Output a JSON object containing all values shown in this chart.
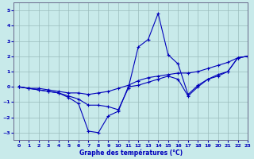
{
  "xlabel": "Graphe des températures (°C)",
  "xlim": [
    -0.5,
    23
  ],
  "ylim": [
    -3.5,
    5.5
  ],
  "yticks": [
    -3,
    -2,
    -1,
    0,
    1,
    2,
    3,
    4,
    5
  ],
  "xticks": [
    0,
    1,
    2,
    3,
    4,
    5,
    6,
    7,
    8,
    9,
    10,
    11,
    12,
    13,
    14,
    15,
    16,
    17,
    18,
    19,
    20,
    21,
    22,
    23
  ],
  "bg_color": "#c8eaea",
  "line_color": "#0000bb",
  "grid_color": "#9abcbc",
  "series1": [
    0.0,
    -0.1,
    -0.1,
    -0.2,
    -0.3,
    -0.4,
    -0.4,
    -0.5,
    -0.4,
    -0.3,
    -0.1,
    0.1,
    0.4,
    0.6,
    0.7,
    0.8,
    0.9,
    0.9,
    1.0,
    1.2,
    1.4,
    1.6,
    1.9,
    2.0
  ],
  "series2": [
    0.0,
    -0.1,
    -0.2,
    -0.3,
    -0.4,
    -0.6,
    -0.8,
    -1.2,
    -1.2,
    -1.3,
    -1.5,
    -0.1,
    2.6,
    3.1,
    4.8,
    2.1,
    1.5,
    -0.5,
    0.1,
    0.5,
    0.8,
    1.0,
    1.9,
    2.0
  ],
  "series3": [
    0.0,
    -0.1,
    -0.2,
    -0.3,
    -0.4,
    -0.7,
    -1.1,
    -2.9,
    -3.0,
    -1.9,
    -1.6,
    0.0,
    0.1,
    0.3,
    0.5,
    0.7,
    0.5,
    -0.6,
    0.0,
    0.5,
    0.7,
    1.0,
    1.9,
    2.0
  ]
}
